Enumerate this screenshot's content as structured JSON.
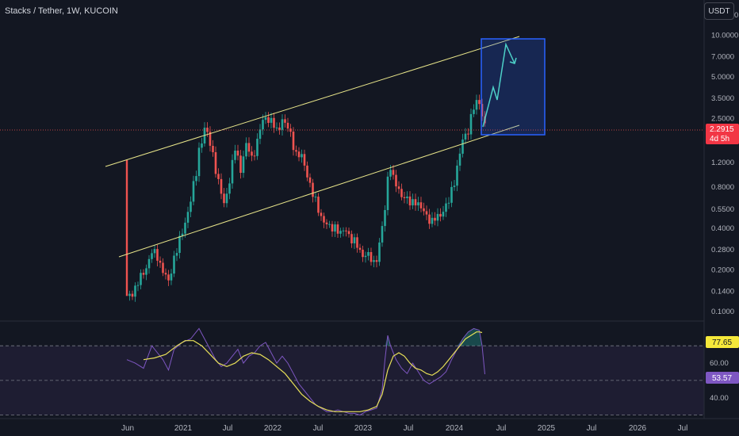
{
  "header": {
    "title": "Stacks / Tether, 1W, KUCOIN",
    "currency": "USDT"
  },
  "colors": {
    "background": "#131722",
    "up": "#26a69a",
    "down": "#ef5350",
    "channel": "#e8e58a",
    "target_box": "#2962ff",
    "arrow": "#4dd0c8",
    "rsi": "#7e57c2",
    "rsi_ma": "#e8e058",
    "price_line": "#ef5350"
  },
  "chart_data": [
    {
      "type": "candlestick",
      "symbol": "STXUSDT",
      "scale": "log",
      "x_ticks": [
        "Jun",
        "2021",
        "Jul",
        "2022",
        "Jul",
        "2023",
        "Jul",
        "2024",
        "Jul",
        "2025",
        "Jul",
        "2026",
        "Jul"
      ],
      "y_ticks": [
        "14.0000",
        "10.0000",
        "7.0000",
        "5.0000",
        "3.5000",
        "2.5000",
        "1.7000",
        "1.2000",
        "0.8000",
        "0.5500",
        "0.4000",
        "0.2800",
        "0.2000",
        "0.1400",
        "0.1000"
      ],
      "ylim": [
        0.095,
        15
      ],
      "last_price": "2.2915",
      "countdown": "4d 5h",
      "points": [
        [
          0,
          1.25
        ],
        [
          1,
          0.13
        ],
        [
          3,
          0.15
        ],
        [
          6,
          0.19
        ],
        [
          9,
          0.27
        ],
        [
          11,
          0.25
        ],
        [
          13,
          0.2
        ],
        [
          15,
          0.16
        ],
        [
          17,
          0.25
        ],
        [
          20,
          0.37
        ],
        [
          23,
          0.65
        ],
        [
          25,
          1.0
        ],
        [
          26,
          1.5
        ],
        [
          28,
          2.1
        ],
        [
          29,
          1.9
        ],
        [
          31,
          1.4
        ],
        [
          33,
          0.85
        ],
        [
          35,
          0.6
        ],
        [
          37,
          0.9
        ],
        [
          39,
          1.5
        ],
        [
          41,
          1.1
        ],
        [
          43,
          1.6
        ],
        [
          45,
          1.3
        ],
        [
          47,
          1.7
        ],
        [
          48,
          2.1
        ],
        [
          50,
          2.6
        ],
        [
          52,
          2.4
        ],
        [
          54,
          2.0
        ],
        [
          56,
          2.5
        ],
        [
          57,
          2.3
        ],
        [
          59,
          1.9
        ],
        [
          61,
          1.4
        ],
        [
          63,
          1.3
        ],
        [
          65,
          1.0
        ],
        [
          67,
          0.7
        ],
        [
          69,
          0.55
        ],
        [
          71,
          0.45
        ],
        [
          73,
          0.4
        ],
        [
          75,
          0.42
        ],
        [
          77,
          0.36
        ],
        [
          79,
          0.4
        ],
        [
          81,
          0.33
        ],
        [
          83,
          0.3
        ],
        [
          85,
          0.26
        ],
        [
          87,
          0.25
        ],
        [
          89,
          0.23
        ],
        [
          90,
          0.25
        ],
        [
          91,
          0.3
        ],
        [
          93,
          0.55
        ],
        [
          94,
          0.95
        ],
        [
          95,
          1.15
        ],
        [
          96,
          0.9
        ],
        [
          98,
          0.75
        ],
        [
          100,
          0.68
        ],
        [
          102,
          0.6
        ],
        [
          104,
          0.65
        ],
        [
          106,
          0.55
        ],
        [
          108,
          0.5
        ],
        [
          110,
          0.45
        ],
        [
          112,
          0.48
        ],
        [
          114,
          0.55
        ],
        [
          116,
          0.62
        ],
        [
          118,
          0.9
        ],
        [
          120,
          1.4
        ],
        [
          121,
          1.7
        ],
        [
          123,
          2.1
        ],
        [
          124,
          2.6
        ],
        [
          125,
          3.0
        ],
        [
          127,
          3.3
        ],
        [
          128,
          2.7
        ],
        [
          129,
          2.29
        ]
      ]
    },
    {
      "type": "line",
      "indicator": "RSI",
      "y_ticks": [
        "60.00",
        "40.00"
      ],
      "levels": [
        70,
        50,
        30
      ],
      "ylim": [
        28,
        82
      ],
      "rsi_value": "53.57",
      "ma_value": "77.65",
      "rsi": [
        [
          0,
          62
        ],
        [
          3,
          60
        ],
        [
          6,
          57
        ],
        [
          9,
          70
        ],
        [
          11,
          66
        ],
        [
          13,
          62
        ],
        [
          15,
          56
        ],
        [
          17,
          68
        ],
        [
          20,
          72
        ],
        [
          23,
          74
        ],
        [
          25,
          78
        ],
        [
          26,
          80
        ],
        [
          28,
          74
        ],
        [
          30,
          68
        ],
        [
          32,
          62
        ],
        [
          34,
          58
        ],
        [
          36,
          60
        ],
        [
          38,
          64
        ],
        [
          40,
          68
        ],
        [
          42,
          60
        ],
        [
          44,
          64
        ],
        [
          46,
          66
        ],
        [
          48,
          70
        ],
        [
          50,
          72
        ],
        [
          52,
          66
        ],
        [
          54,
          60
        ],
        [
          56,
          64
        ],
        [
          58,
          60
        ],
        [
          60,
          54
        ],
        [
          62,
          48
        ],
        [
          64,
          44
        ],
        [
          66,
          40
        ],
        [
          68,
          36
        ],
        [
          70,
          34
        ],
        [
          72,
          32
        ],
        [
          74,
          32
        ],
        [
          76,
          33
        ],
        [
          78,
          32
        ],
        [
          80,
          31
        ],
        [
          82,
          31
        ],
        [
          84,
          30
        ],
        [
          86,
          32
        ],
        [
          88,
          33
        ],
        [
          90,
          34
        ],
        [
          92,
          45
        ],
        [
          93,
          62
        ],
        [
          94,
          76
        ],
        [
          95,
          70
        ],
        [
          97,
          62
        ],
        [
          99,
          57
        ],
        [
          101,
          54
        ],
        [
          103,
          60
        ],
        [
          105,
          55
        ],
        [
          107,
          50
        ],
        [
          109,
          48
        ],
        [
          111,
          50
        ],
        [
          113,
          52
        ],
        [
          115,
          55
        ],
        [
          117,
          62
        ],
        [
          119,
          68
        ],
        [
          121,
          74
        ],
        [
          123,
          78
        ],
        [
          125,
          80
        ],
        [
          127,
          79
        ],
        [
          128,
          70
        ],
        [
          129,
          53.57
        ]
      ],
      "rsi_ma": [
        [
          6,
          62
        ],
        [
          10,
          63
        ],
        [
          14,
          65
        ],
        [
          18,
          70
        ],
        [
          21,
          73
        ],
        [
          24,
          73
        ],
        [
          27,
          70
        ],
        [
          30,
          65
        ],
        [
          33,
          60
        ],
        [
          36,
          58
        ],
        [
          39,
          60
        ],
        [
          42,
          64
        ],
        [
          45,
          66
        ],
        [
          48,
          65
        ],
        [
          51,
          62
        ],
        [
          54,
          58
        ],
        [
          57,
          54
        ],
        [
          60,
          48
        ],
        [
          63,
          42
        ],
        [
          66,
          38
        ],
        [
          69,
          35
        ],
        [
          72,
          33
        ],
        [
          75,
          32
        ],
        [
          78,
          32
        ],
        [
          81,
          32
        ],
        [
          84,
          32
        ],
        [
          87,
          33
        ],
        [
          90,
          35
        ],
        [
          92,
          42
        ],
        [
          94,
          56
        ],
        [
          96,
          64
        ],
        [
          98,
          66
        ],
        [
          100,
          64
        ],
        [
          102,
          60
        ],
        [
          104,
          57
        ],
        [
          106,
          56
        ],
        [
          108,
          54
        ],
        [
          110,
          53
        ],
        [
          112,
          55
        ],
        [
          114,
          58
        ],
        [
          116,
          62
        ],
        [
          118,
          66
        ],
        [
          120,
          70
        ],
        [
          122,
          74
        ],
        [
          124,
          76
        ],
        [
          126,
          78
        ],
        [
          127,
          78
        ],
        [
          128,
          77.65
        ]
      ]
    }
  ]
}
